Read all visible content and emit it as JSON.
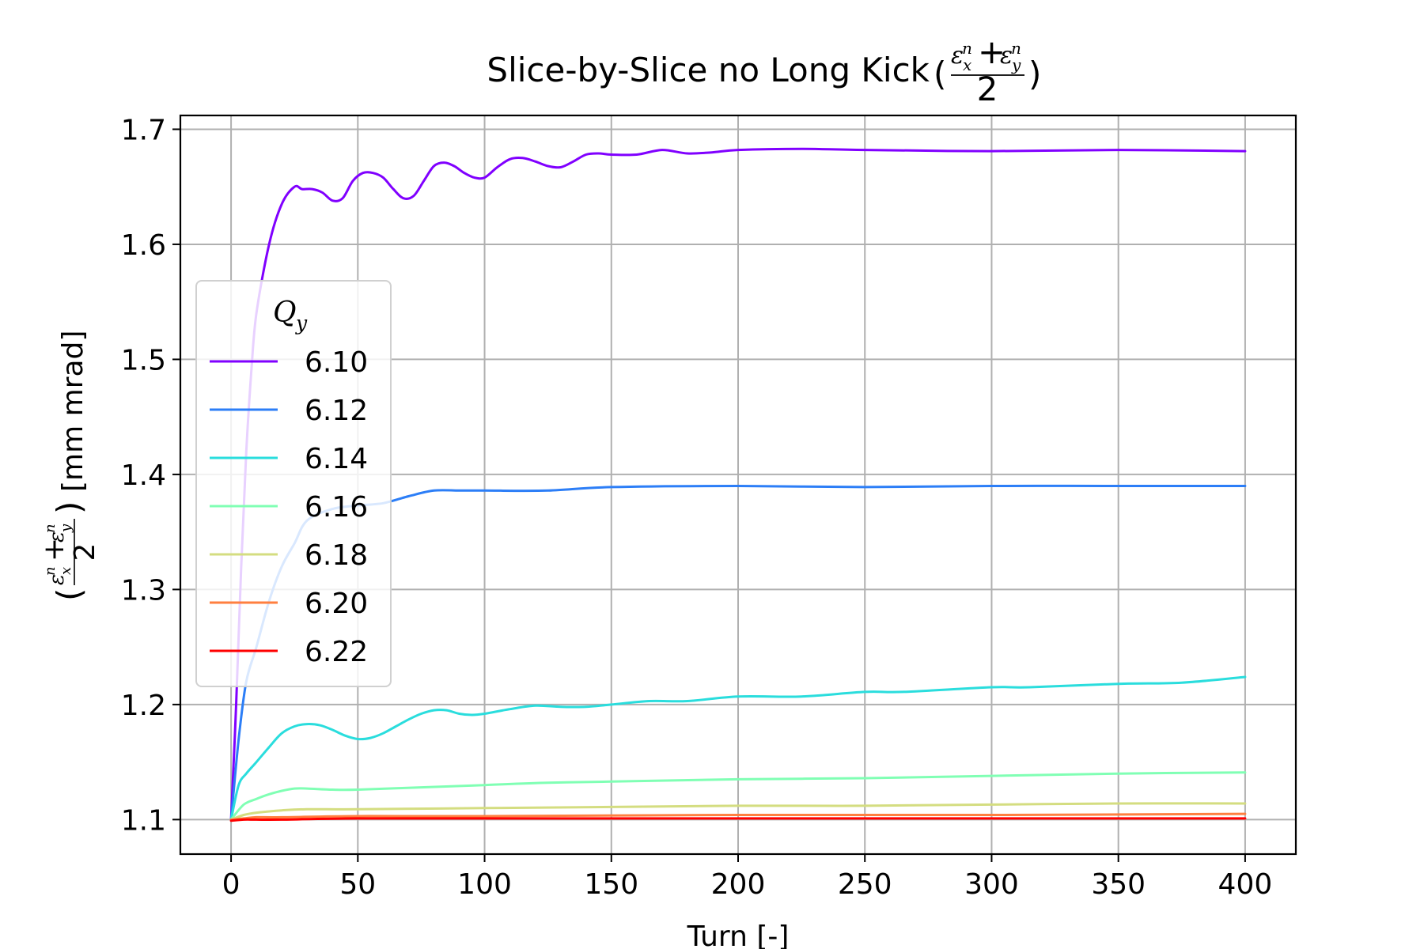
{
  "chart_data": {
    "type": "line",
    "title": "Slice-by-Slice no Long Kick",
    "title_math": {
      "num_left": "ε",
      "num_left_sub": "x",
      "num_left_sup": "n",
      "plus": "+",
      "num_right": "ε",
      "num_right_sub": "y",
      "num_right_sup": "n",
      "den": "2"
    },
    "xlabel": "Turn [-]",
    "ylabel_unit": "[mm mrad]",
    "xlim": [
      -20,
      420
    ],
    "ylim": [
      1.07,
      1.712
    ],
    "xticks": [
      0,
      50,
      100,
      150,
      200,
      250,
      300,
      350,
      400
    ],
    "yticks": [
      1.1,
      1.2,
      1.3,
      1.4,
      1.5,
      1.6,
      1.7
    ],
    "grid": true,
    "legend": {
      "title": "Q",
      "title_sub": "y",
      "placement": "center-left"
    },
    "series": [
      {
        "name": "6.10",
        "color": "#8000ff",
        "x": [
          0,
          2,
          4,
          6,
          8,
          10,
          15,
          20,
          25,
          28,
          32,
          36,
          40,
          44,
          48,
          52,
          56,
          60,
          64,
          68,
          72,
          76,
          80,
          84,
          88,
          92,
          96,
          100,
          105,
          110,
          115,
          120,
          125,
          130,
          135,
          140,
          145,
          150,
          160,
          170,
          180,
          190,
          200,
          225,
          250,
          300,
          350,
          400
        ],
        "y": [
          1.1,
          1.2,
          1.32,
          1.42,
          1.49,
          1.54,
          1.6,
          1.635,
          1.65,
          1.648,
          1.648,
          1.645,
          1.638,
          1.64,
          1.655,
          1.662,
          1.662,
          1.658,
          1.648,
          1.64,
          1.642,
          1.655,
          1.668,
          1.671,
          1.668,
          1.662,
          1.658,
          1.658,
          1.667,
          1.674,
          1.675,
          1.672,
          1.668,
          1.667,
          1.672,
          1.678,
          1.679,
          1.678,
          1.678,
          1.682,
          1.679,
          1.68,
          1.682,
          1.683,
          1.682,
          1.681,
          1.682,
          1.681
        ]
      },
      {
        "name": "6.12",
        "color": "#2c7ef7",
        "x": [
          0,
          3,
          6,
          10,
          15,
          20,
          25,
          30,
          40,
          50,
          60,
          70,
          80,
          90,
          100,
          125,
          150,
          200,
          250,
          300,
          350,
          400
        ],
        "y": [
          1.1,
          1.17,
          1.22,
          1.25,
          1.29,
          1.32,
          1.34,
          1.36,
          1.37,
          1.373,
          1.375,
          1.381,
          1.386,
          1.386,
          1.386,
          1.386,
          1.389,
          1.39,
          1.389,
          1.39,
          1.39,
          1.39
        ]
      },
      {
        "name": "6.14",
        "color": "#2adddd",
        "x": [
          0,
          3,
          6,
          10,
          15,
          20,
          25,
          30,
          35,
          40,
          45,
          50,
          55,
          60,
          65,
          70,
          75,
          80,
          85,
          90,
          95,
          100,
          110,
          120,
          130,
          140,
          150,
          165,
          180,
          200,
          225,
          250,
          265,
          300,
          315,
          350,
          375,
          400
        ],
        "y": [
          1.1,
          1.13,
          1.14,
          1.15,
          1.163,
          1.175,
          1.181,
          1.183,
          1.182,
          1.178,
          1.173,
          1.17,
          1.171,
          1.175,
          1.181,
          1.187,
          1.192,
          1.195,
          1.195,
          1.192,
          1.191,
          1.192,
          1.196,
          1.199,
          1.198,
          1.198,
          1.2,
          1.203,
          1.203,
          1.207,
          1.207,
          1.211,
          1.211,
          1.215,
          1.215,
          1.218,
          1.219,
          1.224
        ]
      },
      {
        "name": "6.16",
        "color": "#80ffb4",
        "x": [
          0,
          5,
          10,
          15,
          20,
          25,
          30,
          40,
          50,
          75,
          100,
          125,
          150,
          200,
          250,
          300,
          350,
          400
        ],
        "y": [
          1.1,
          1.113,
          1.118,
          1.122,
          1.125,
          1.127,
          1.127,
          1.126,
          1.126,
          1.128,
          1.13,
          1.132,
          1.133,
          1.135,
          1.136,
          1.138,
          1.14,
          1.141
        ]
      },
      {
        "name": "6.18",
        "color": "#d4dd80",
        "x": [
          0,
          5,
          10,
          20,
          30,
          50,
          100,
          150,
          200,
          250,
          300,
          350,
          400
        ],
        "y": [
          1.1,
          1.104,
          1.106,
          1.108,
          1.109,
          1.109,
          1.11,
          1.111,
          1.112,
          1.112,
          1.113,
          1.114,
          1.114
        ]
      },
      {
        "name": "6.20",
        "color": "#ff7f40",
        "x": [
          0,
          5,
          10,
          20,
          50,
          100,
          200,
          300,
          400
        ],
        "y": [
          1.1,
          1.101,
          1.102,
          1.102,
          1.103,
          1.103,
          1.104,
          1.104,
          1.105
        ]
      },
      {
        "name": "6.22",
        "color": "#ff0000",
        "x": [
          0,
          5,
          10,
          20,
          50,
          100,
          200,
          300,
          400
        ],
        "y": [
          1.099,
          1.1,
          1.1,
          1.1,
          1.101,
          1.101,
          1.101,
          1.101,
          1.101
        ]
      }
    ]
  }
}
